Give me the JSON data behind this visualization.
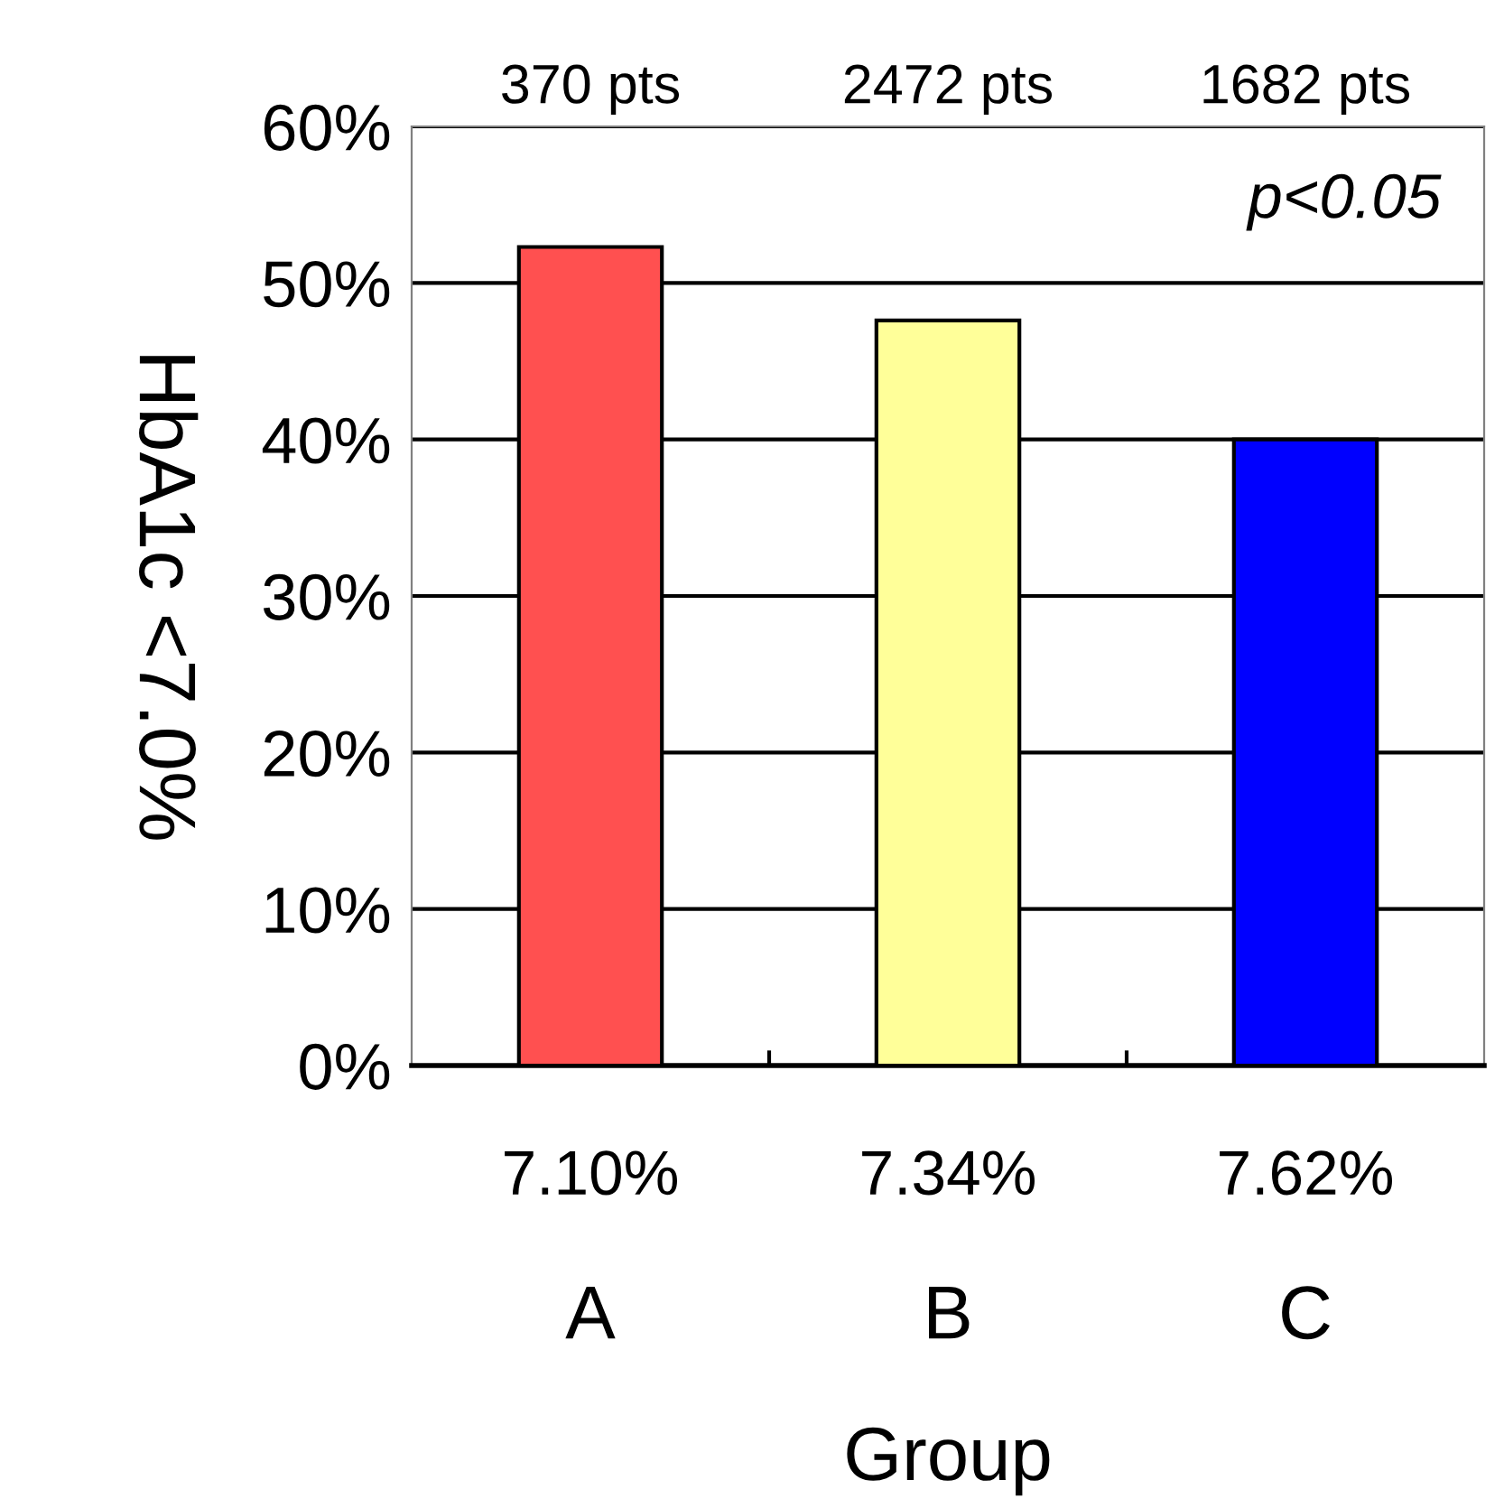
{
  "chart_data": {
    "type": "bar",
    "categories": [
      "A",
      "B",
      "C"
    ],
    "values": [
      52.3,
      47.6,
      40.0
    ],
    "colors": [
      "#ff5050",
      "#ffff99",
      "#0000ff"
    ],
    "xlabel": "Group",
    "ylabel": "HbA1c <7.0%",
    "ylim": [
      0,
      60
    ],
    "yticks": [
      {
        "value": 0,
        "label": "0%"
      },
      {
        "value": 10,
        "label": "10%"
      },
      {
        "value": 20,
        "label": "20%"
      },
      {
        "value": 30,
        "label": "30%"
      },
      {
        "value": 40,
        "label": "40%"
      },
      {
        "value": 50,
        "label": "50%"
      },
      {
        "value": 60,
        "label": "60%"
      }
    ],
    "grid": "y",
    "annotations": [
      "370 pts",
      "2472 pts",
      "1682 pts",
      "7.10%",
      "7.34%",
      "7.62%",
      "p<0.05"
    ]
  }
}
